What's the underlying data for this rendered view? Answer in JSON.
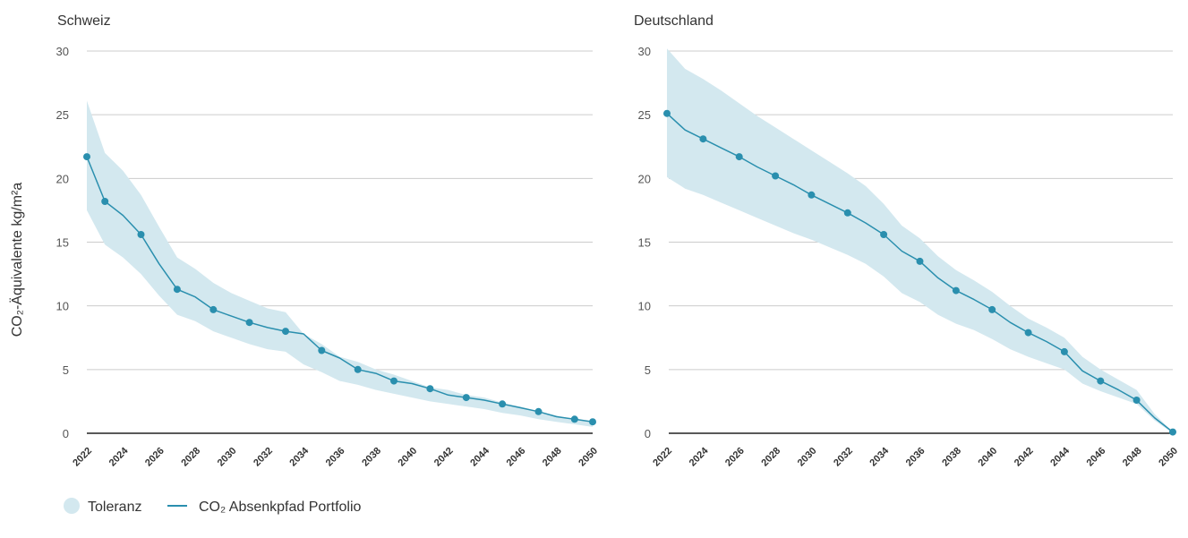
{
  "colors": {
    "band": "#d3e8ef",
    "line": "#2a8fae",
    "grid": "#cccccc",
    "baseline": "#222222"
  },
  "y_axis_label": "CO₂-Äquivalente kg/m²a",
  "legend": [
    {
      "label": "Toleranz",
      "icon": "circle-swatch"
    },
    {
      "label": "CO₂ Absenkpfad Portfolio",
      "icon": "line-swatch"
    }
  ],
  "chart_data": [
    {
      "type": "area",
      "title": "Schweiz",
      "ylim": [
        0,
        30
      ],
      "yticks": [
        0,
        5,
        10,
        15,
        20,
        25,
        30
      ],
      "xlim": [
        2022,
        2050
      ],
      "xticks": [
        2022,
        2024,
        2026,
        2028,
        2030,
        2032,
        2034,
        2036,
        2038,
        2040,
        2042,
        2044,
        2046,
        2048,
        2050
      ],
      "grid": true,
      "band": {
        "name": "Toleranz",
        "x": [
          2022,
          2023,
          2024,
          2025,
          2026,
          2027,
          2028,
          2029,
          2030,
          2031,
          2032,
          2033,
          2034,
          2035,
          2036,
          2037,
          2038,
          2039,
          2040,
          2041,
          2042,
          2043,
          2044,
          2045,
          2046,
          2047,
          2048,
          2049,
          2050
        ],
        "upper": [
          26.1,
          22.0,
          20.6,
          18.7,
          16.2,
          13.8,
          12.9,
          11.8,
          11.0,
          10.4,
          9.8,
          9.5,
          7.8,
          7.0,
          6.0,
          5.6,
          5.0,
          4.6,
          4.1,
          3.6,
          3.4,
          3.0,
          2.8,
          2.4,
          2.1,
          1.7,
          1.4,
          1.1,
          0.9
        ],
        "lower": [
          17.5,
          14.8,
          13.8,
          12.5,
          10.8,
          9.3,
          8.8,
          8.0,
          7.5,
          7.0,
          6.6,
          6.4,
          5.4,
          4.8,
          4.1,
          3.8,
          3.4,
          3.1,
          2.8,
          2.5,
          2.3,
          2.1,
          1.9,
          1.6,
          1.4,
          1.1,
          0.9,
          0.7,
          0.5
        ]
      },
      "series": [
        {
          "name": "CO₂ Absenkpfad Portfolio",
          "x": [
            2022,
            2023,
            2024,
            2025,
            2026,
            2027,
            2028,
            2029,
            2030,
            2031,
            2032,
            2033,
            2034,
            2035,
            2036,
            2037,
            2038,
            2039,
            2040,
            2041,
            2042,
            2043,
            2044,
            2045,
            2046,
            2047,
            2048,
            2049,
            2050
          ],
          "values": [
            21.7,
            18.2,
            17.1,
            15.6,
            13.3,
            11.3,
            10.7,
            9.7,
            9.2,
            8.7,
            8.3,
            8.0,
            7.8,
            6.5,
            5.9,
            5.0,
            4.7,
            4.1,
            3.9,
            3.5,
            3.0,
            2.8,
            2.6,
            2.3,
            2.0,
            1.7,
            1.3,
            1.1,
            0.9
          ]
        }
      ],
      "markers_x": [
        2022,
        2023,
        2025,
        2027,
        2029,
        2031,
        2033,
        2035,
        2037,
        2039,
        2041,
        2043,
        2045,
        2047,
        2049,
        2050
      ]
    },
    {
      "type": "area",
      "title": "Deutschland",
      "ylim": [
        0,
        30
      ],
      "yticks": [
        0,
        5,
        10,
        15,
        20,
        25,
        30
      ],
      "xlim": [
        2022,
        2050
      ],
      "xticks": [
        2022,
        2024,
        2026,
        2028,
        2030,
        2032,
        2034,
        2036,
        2038,
        2040,
        2042,
        2044,
        2046,
        2048,
        2050
      ],
      "grid": true,
      "band": {
        "name": "Toleranz",
        "x": [
          2022,
          2023,
          2024,
          2025,
          2026,
          2027,
          2028,
          2029,
          2030,
          2031,
          2032,
          2033,
          2034,
          2035,
          2036,
          2037,
          2038,
          2039,
          2040,
          2041,
          2042,
          2043,
          2044,
          2045,
          2046,
          2047,
          2048,
          2049,
          2050
        ],
        "upper": [
          30.2,
          28.6,
          27.8,
          26.9,
          25.9,
          24.9,
          24.0,
          23.1,
          22.2,
          21.3,
          20.4,
          19.4,
          18.0,
          16.3,
          15.3,
          13.9,
          12.8,
          12.0,
          11.1,
          10.0,
          9.0,
          8.3,
          7.5,
          6.0,
          5.0,
          4.2,
          3.4,
          1.5,
          0.1
        ],
        "lower": [
          20.1,
          19.2,
          18.7,
          18.1,
          17.5,
          16.9,
          16.3,
          15.7,
          15.2,
          14.6,
          14.0,
          13.3,
          12.3,
          11.0,
          10.3,
          9.3,
          8.6,
          8.1,
          7.4,
          6.6,
          6.0,
          5.5,
          5.0,
          3.9,
          3.3,
          2.8,
          2.3,
          1.0,
          0.0
        ]
      },
      "series": [
        {
          "name": "CO₂ Absenkpfad Portfolio",
          "x": [
            2022,
            2023,
            2024,
            2025,
            2026,
            2027,
            2028,
            2029,
            2030,
            2031,
            2032,
            2033,
            2034,
            2035,
            2036,
            2037,
            2038,
            2039,
            2040,
            2041,
            2042,
            2043,
            2044,
            2045,
            2046,
            2047,
            2048,
            2049,
            2050
          ],
          "values": [
            25.1,
            23.8,
            23.1,
            22.4,
            21.7,
            20.9,
            20.2,
            19.5,
            18.7,
            18.0,
            17.3,
            16.5,
            15.6,
            14.3,
            13.5,
            12.2,
            11.2,
            10.5,
            9.7,
            8.7,
            7.9,
            7.2,
            6.4,
            4.9,
            4.1,
            3.4,
            2.6,
            1.2,
            0.1
          ]
        }
      ],
      "markers_x": [
        2022,
        2024,
        2026,
        2028,
        2030,
        2032,
        2034,
        2036,
        2038,
        2040,
        2042,
        2044,
        2046,
        2048,
        2050
      ]
    }
  ]
}
